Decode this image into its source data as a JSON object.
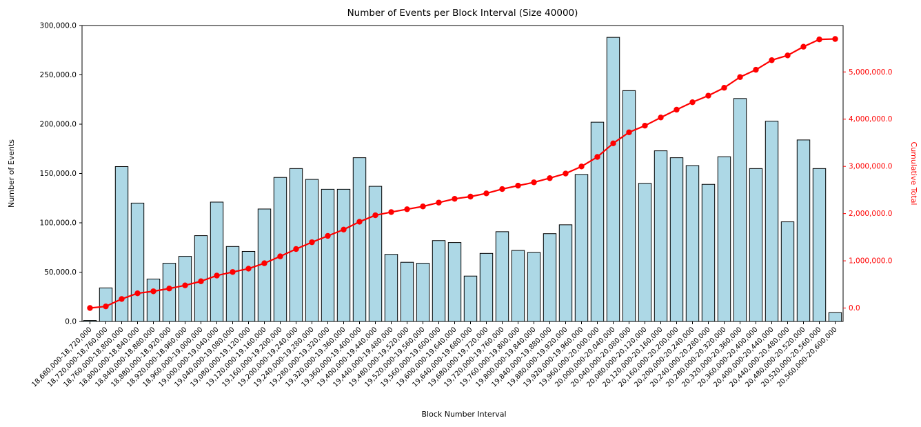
{
  "chart_data": {
    "type": "bar",
    "title": "Number of Events per Block Interval (Size 40000)",
    "xlabel": "Block Number Interval",
    "ylabel_left": "Number of Events",
    "ylabel_right": "Cumulative Total",
    "legend_position": "none",
    "grid": false,
    "bar_color": "#ADD8E6",
    "bar_edge_color": "#000000",
    "line_color": "#ff0000",
    "right_axis_color": "#ff0000",
    "left_axis_color": "#000000",
    "ylim_left": [
      0,
      300000
    ],
    "ylim_right": [
      -283850,
      5982850
    ],
    "yticks_left": {
      "values": [
        0,
        50000,
        100000,
        150000,
        200000,
        250000,
        300000
      ],
      "labels": [
        "0.0",
        "50,000.0",
        "100,000.0",
        "150,000.0",
        "200,000.0",
        "250,000.0",
        "300,000.0"
      ]
    },
    "yticks_right": {
      "values": [
        0,
        1000000,
        2000000,
        3000000,
        4000000,
        5000000
      ],
      "labels": [
        "0.0",
        "1,000,000.0",
        "2,000,000.0",
        "3,000,000.0",
        "4,000,000.0",
        "5,000,000.0"
      ]
    },
    "categories": [
      "18,680,000-18,720,000",
      "18,720,000-18,760,000",
      "18,760,000-18,800,000",
      "18,800,000-18,840,000",
      "18,840,000-18,880,000",
      "18,880,000-18,920,000",
      "18,920,000-18,960,000",
      "18,960,000-19,000,000",
      "19,000,000-19,040,000",
      "19,040,000-19,080,000",
      "19,080,000-19,120,000",
      "19,120,000-19,160,000",
      "19,160,000-19,200,000",
      "19,200,000-19,240,000",
      "19,240,000-19,280,000",
      "19,280,000-19,320,000",
      "19,320,000-19,360,000",
      "19,360,000-19,400,000",
      "19,400,000-19,440,000",
      "19,440,000-19,480,000",
      "19,480,000-19,520,000",
      "19,520,000-19,560,000",
      "19,560,000-19,600,000",
      "19,600,000-19,640,000",
      "19,640,000-19,680,000",
      "19,680,000-19,720,000",
      "19,720,000-19,760,000",
      "19,760,000-19,800,000",
      "19,800,000-19,840,000",
      "19,840,000-19,880,000",
      "19,880,000-19,920,000",
      "19,920,000-19,960,000",
      "19,960,000-20,000,000",
      "20,000,000-20,040,000",
      "20,040,000-20,080,000",
      "20,080,000-20,120,000",
      "20,120,000-20,160,000",
      "20,160,000-20,200,000",
      "20,200,000-20,240,000",
      "20,240,000-20,280,000",
      "20,280,000-20,320,000",
      "20,320,000-20,360,000",
      "20,360,000-20,400,000",
      "20,400,000-20,440,000",
      "20,440,000-20,480,000",
      "20,480,000-20,520,000",
      "20,520,000-20,560,000",
      "20,560,000-20,600,000"
    ],
    "series": [
      {
        "name": "Number of Events",
        "type": "bar",
        "axis": "left",
        "values": [
          1000,
          34000,
          157000,
          120000,
          43000,
          59000,
          66000,
          87000,
          121000,
          76000,
          71000,
          114000,
          146000,
          155000,
          144000,
          134000,
          134000,
          166000,
          137000,
          68000,
          60000,
          59000,
          82000,
          80000,
          46000,
          69000,
          91000,
          72000,
          70000,
          89000,
          98000,
          149000,
          202000,
          288000,
          234000,
          140000,
          173000,
          166000,
          158000,
          139000,
          167000,
          226000,
          155000,
          203000,
          101000,
          184000,
          155000,
          9000
        ]
      },
      {
        "name": "Cumulative Total",
        "type": "line",
        "axis": "right",
        "marker": "circle",
        "values": [
          1000,
          35000,
          192000,
          312000,
          355000,
          414000,
          480000,
          567000,
          688000,
          764000,
          835000,
          949000,
          1095000,
          1250000,
          1394000,
          1528000,
          1662000,
          1828000,
          1965000,
          2033000,
          2093000,
          2152000,
          2234000,
          2314000,
          2360000,
          2429000,
          2520000,
          2592000,
          2662000,
          2751000,
          2849000,
          2998000,
          3200000,
          3488000,
          3722000,
          3862000,
          4035000,
          4201000,
          4359000,
          4498000,
          4665000,
          4891000,
          5046000,
          5249000,
          5350000,
          5534000,
          5689000,
          5698000
        ]
      }
    ]
  }
}
